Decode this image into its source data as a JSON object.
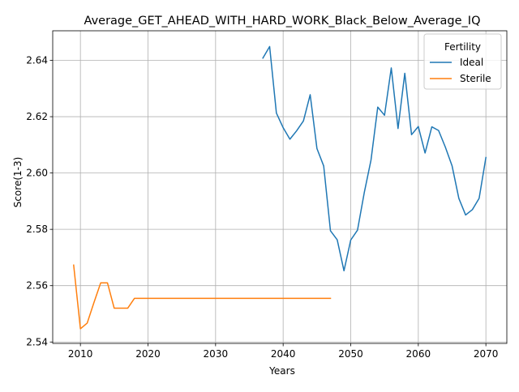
{
  "chart_data": {
    "type": "line",
    "title": "Average_GET_AHEAD_WITH_HARD_WORK_Black_Below_Average_IQ",
    "xlabel": "Years",
    "ylabel": "Score(1-3)",
    "xlim": [
      2005.9,
      2073.1
    ],
    "ylim": [
      2.5395,
      2.6505
    ],
    "x_ticks": [
      2010,
      2020,
      2030,
      2040,
      2050,
      2060,
      2070
    ],
    "y_ticks": [
      2.54,
      2.56,
      2.58,
      2.6,
      2.62,
      2.64
    ],
    "y_tick_labels": [
      "2.54",
      "2.56",
      "2.58",
      "2.60",
      "2.62",
      "2.64"
    ],
    "grid": true,
    "legend": {
      "title": "Fertility",
      "placement": "upper right"
    },
    "series": [
      {
        "name": "Ideal",
        "color": "#1f77b4",
        "x": [
          2037,
          2038,
          2039,
          2040,
          2041,
          2042,
          2043,
          2044,
          2045,
          2046,
          2047,
          2048,
          2049,
          2050,
          2051,
          2052,
          2053,
          2054,
          2055,
          2056,
          2057,
          2058,
          2059,
          2060,
          2061,
          2062,
          2063,
          2064,
          2065,
          2066,
          2067,
          2068,
          2069,
          2070
        ],
        "y": [
          2.6408,
          2.6449,
          2.6213,
          2.6161,
          2.612,
          2.615,
          2.6185,
          2.6278,
          2.6087,
          2.6025,
          2.5795,
          2.5763,
          2.5653,
          2.5762,
          2.5797,
          2.593,
          2.6046,
          2.6234,
          2.6205,
          2.6373,
          2.6158,
          2.6354,
          2.6136,
          2.6165,
          2.6071,
          2.6164,
          2.6151,
          2.6092,
          2.6025,
          2.591,
          2.5851,
          2.587,
          2.591,
          2.6055
        ]
      },
      {
        "name": "Sterile",
        "color": "#ff7f0e",
        "x": [
          2009,
          2010,
          2011,
          2012,
          2013,
          2014,
          2015,
          2016,
          2017,
          2018,
          2019,
          2020,
          2021,
          2022,
          2023,
          2024,
          2025,
          2026,
          2027,
          2028,
          2029,
          2030,
          2031,
          2032,
          2033,
          2034,
          2035,
          2036,
          2037,
          2038,
          2039,
          2040,
          2041,
          2042,
          2043,
          2044,
          2045,
          2046,
          2047
        ],
        "y": [
          2.5673,
          2.5447,
          2.5467,
          2.554,
          2.561,
          2.561,
          2.552,
          2.552,
          2.552,
          2.5555,
          2.5555,
          2.5555,
          2.5555,
          2.5555,
          2.5555,
          2.5555,
          2.5555,
          2.5555,
          2.5555,
          2.5555,
          2.5555,
          2.5555,
          2.5555,
          2.5555,
          2.5555,
          2.5555,
          2.5555,
          2.5555,
          2.5555,
          2.5555,
          2.5555,
          2.5555,
          2.5555,
          2.5555,
          2.5555,
          2.5555,
          2.5555,
          2.5555,
          2.5555
        ]
      }
    ]
  }
}
